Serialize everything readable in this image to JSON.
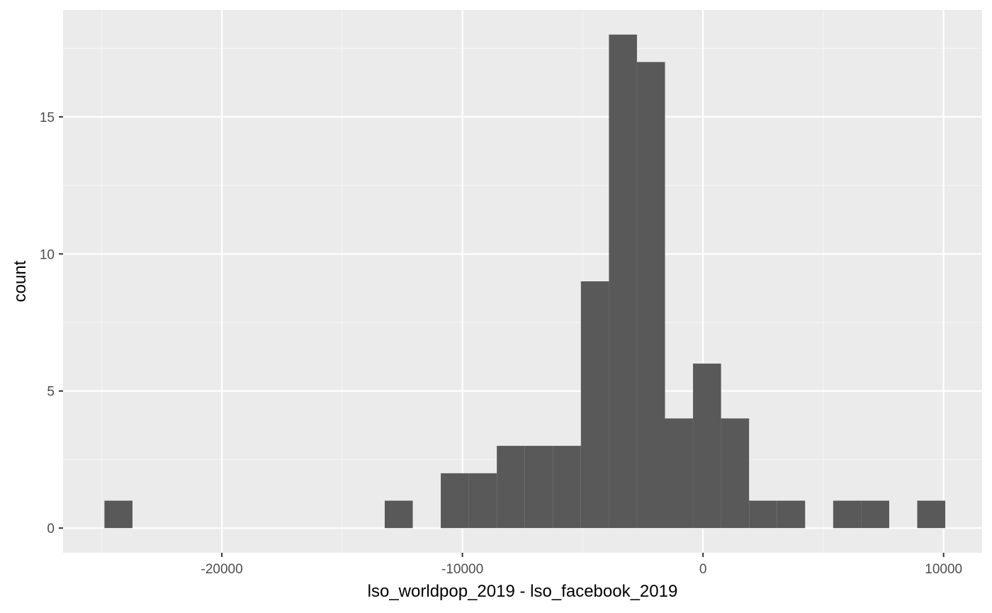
{
  "chart_data": {
    "type": "bar",
    "title": "",
    "xlabel": "lso_worldpop_2019 - lso_facebook_2019",
    "ylabel": "count",
    "xlim": [
      -26600,
      11600
    ],
    "ylim": [
      -0.9,
      18.9
    ],
    "x_ticks": [
      -20000,
      -10000,
      0,
      10000
    ],
    "x_tick_labels": [
      "-20000",
      "-10000",
      "0",
      "10000"
    ],
    "y_ticks": [
      0,
      5,
      10,
      15
    ],
    "y_tick_labels": [
      "0",
      "5",
      "10",
      "15"
    ],
    "bin_width": 1165,
    "bins": [
      {
        "x0": -24880,
        "x1": -23715,
        "count": 1
      },
      {
        "x0": -13230,
        "x1": -12065,
        "count": 1
      },
      {
        "x0": -10900,
        "x1": -9735,
        "count": 2
      },
      {
        "x0": -9735,
        "x1": -8570,
        "count": 2
      },
      {
        "x0": -8570,
        "x1": -7405,
        "count": 3
      },
      {
        "x0": -7405,
        "x1": -6240,
        "count": 3
      },
      {
        "x0": -6240,
        "x1": -5075,
        "count": 3
      },
      {
        "x0": -5075,
        "x1": -3910,
        "count": 9
      },
      {
        "x0": -3910,
        "x1": -2745,
        "count": 18
      },
      {
        "x0": -2745,
        "x1": -1580,
        "count": 17
      },
      {
        "x0": -1580,
        "x1": -415,
        "count": 4
      },
      {
        "x0": -415,
        "x1": 750,
        "count": 6
      },
      {
        "x0": 750,
        "x1": 1915,
        "count": 4
      },
      {
        "x0": 1915,
        "x1": 3080,
        "count": 1
      },
      {
        "x0": 3080,
        "x1": 4245,
        "count": 1
      },
      {
        "x0": 5410,
        "x1": 6575,
        "count": 1
      },
      {
        "x0": 6575,
        "x1": 7740,
        "count": 1
      },
      {
        "x0": 8905,
        "x1": 10070,
        "count": 1
      }
    ],
    "grid": true,
    "colors": {
      "panel_background": "#ebebeb",
      "grid_major": "#ffffff",
      "grid_minor": "#f5f5f5",
      "bar_fill": "#595959",
      "tick_color": "#333333",
      "tick_text": "#4d4d4d"
    }
  }
}
